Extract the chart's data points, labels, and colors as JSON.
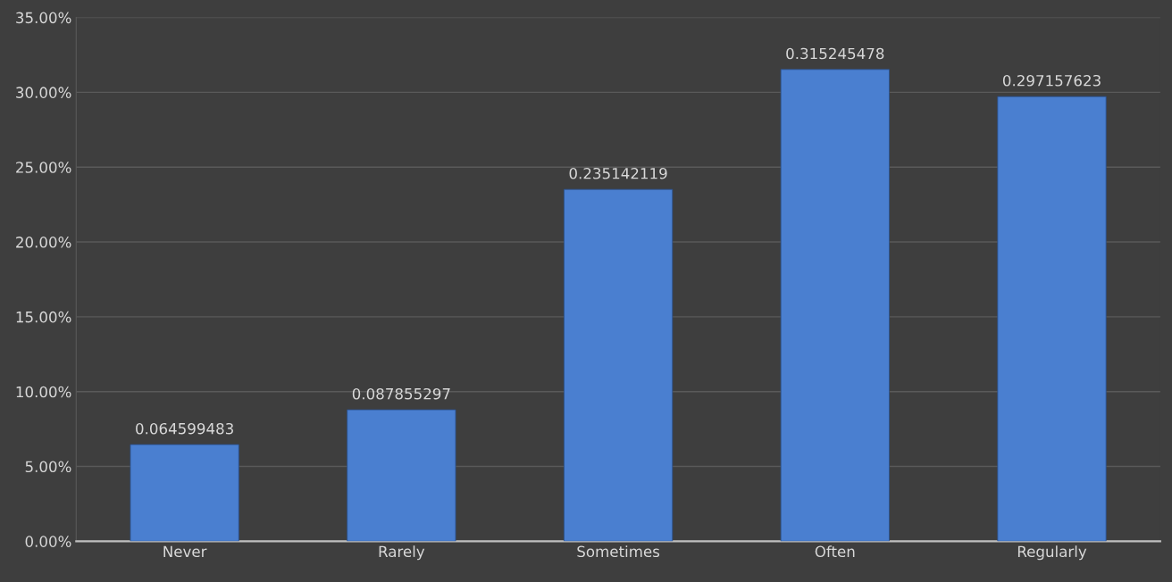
{
  "chart_data": {
    "type": "bar",
    "categories": [
      "Never",
      "Rarely",
      "Sometimes",
      "Often",
      "Regularly"
    ],
    "values": [
      0.064599483,
      0.087855297,
      0.235142119,
      0.315245478,
      0.297157623
    ],
    "color": "#4a7fd0",
    "data_labels": true,
    "ylim": [
      0,
      0.35
    ],
    "yticks": [
      {
        "value": 0,
        "label": "0.00%"
      },
      {
        "value": 0.05,
        "label": "5.00%"
      },
      {
        "value": 0.1,
        "label": "10.00%"
      },
      {
        "value": 0.15,
        "label": "15.00%"
      },
      {
        "value": 0.2,
        "label": "20.00%"
      },
      {
        "value": 0.25,
        "label": "25.00%"
      },
      {
        "value": 0.3,
        "label": "30.00%"
      },
      {
        "value": 0.35,
        "label": "35.00%"
      }
    ],
    "grid": "y",
    "legend": false
  }
}
